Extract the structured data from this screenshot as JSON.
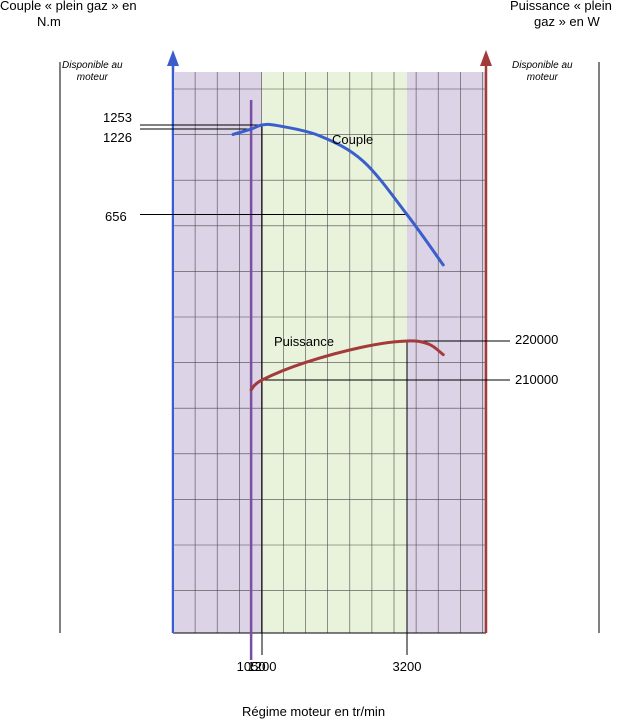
{
  "chart_data": {
    "type": "line",
    "left_axis_title": [
      "Couple « plein gaz » en",
      "N.m"
    ],
    "right_axis_title": [
      "Puissance  « plein",
      "gaz »  en W"
    ],
    "left_available_label": [
      "Disponible au",
      "moteur"
    ],
    "right_available_label": [
      "Disponible au",
      "moteur"
    ],
    "xlabel": "Régime moteur en tr/min",
    "x_ticks": [
      "1050",
      "1200",
      "3200"
    ],
    "couple_labels": [
      "1253",
      "1226",
      "656"
    ],
    "power_labels": [
      "220000",
      "210000"
    ],
    "series": [
      {
        "name": "Couple",
        "color": "#3a5fcd",
        "points": [
          [
            800,
            1190
          ],
          [
            1050,
            1226
          ],
          [
            1200,
            1253
          ],
          [
            1400,
            1250
          ],
          [
            2000,
            1180
          ],
          [
            2600,
            1010
          ],
          [
            3200,
            656
          ],
          [
            3700,
            320
          ]
        ]
      },
      {
        "name": "Puissance",
        "color": "#a33b3b",
        "points": [
          [
            1050,
            207500
          ],
          [
            1200,
            210000
          ],
          [
            1800,
            214500
          ],
          [
            2600,
            218500
          ],
          [
            3200,
            220000
          ],
          [
            3500,
            219200
          ],
          [
            3700,
            216500
          ]
        ]
      }
    ],
    "bands": [
      {
        "from": 0,
        "to": 1200,
        "color": "#ddd3e6"
      },
      {
        "from": 1200,
        "to": 3200,
        "color": "#e9f2db"
      },
      {
        "from": 3200,
        "to": 4700,
        "color": "#ddd3e6"
      }
    ],
    "colors": {
      "left_axis": "#3a5fcd",
      "right_axis": "#a33b3b",
      "vline_1050": "#7a4ea0",
      "grid": "#4a4a4a"
    }
  }
}
